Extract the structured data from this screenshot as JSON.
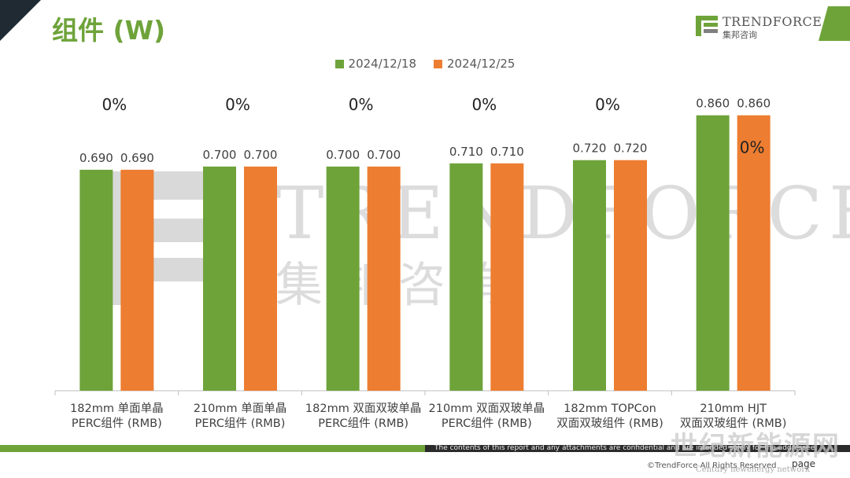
{
  "header": {
    "title": "组件 (W)",
    "logo_text": "TRENDFORCE",
    "logo_sub": "集邦咨询"
  },
  "colors": {
    "series1": "#6ea33a",
    "series2": "#ed7d31",
    "accent": "#6ea33a"
  },
  "chart_data": {
    "type": "bar",
    "title": "组件 (W)",
    "categories": [
      [
        "182mm 单面单晶",
        "PERC组件 (RMB)"
      ],
      [
        "210mm 单面单晶",
        "PERC组件 (RMB)"
      ],
      [
        "182mm 双面双玻单晶",
        "PERC组件 (RMB)"
      ],
      [
        "210mm 双面双玻单晶",
        "PERC组件 (RMB)"
      ],
      [
        "182mm TOPCon",
        "双面双玻组件 (RMB)"
      ],
      [
        "210mm HJT",
        "双面双玻组件 (RMB)"
      ]
    ],
    "series": [
      {
        "name": "2024/12/18",
        "values": [
          0.69,
          0.7,
          0.7,
          0.71,
          0.72,
          0.86
        ]
      },
      {
        "name": "2024/12/25",
        "values": [
          0.69,
          0.7,
          0.7,
          0.71,
          0.72,
          0.86
        ]
      }
    ],
    "change_labels": [
      "0%",
      "0%",
      "0%",
      "0%",
      "0%",
      "0%"
    ],
    "ylim": [
      0,
      0.95
    ],
    "legend_position": "top-center",
    "grid": false
  },
  "footer": {
    "note": "The contents of this report and any attachments are confidential and are intended solely for the addressee.",
    "copyright": "©TrendForce All Rights Reserved",
    "page_label": "page",
    "stamp": "世纪新能源网",
    "stamp_sub": "Century newenergy network"
  }
}
